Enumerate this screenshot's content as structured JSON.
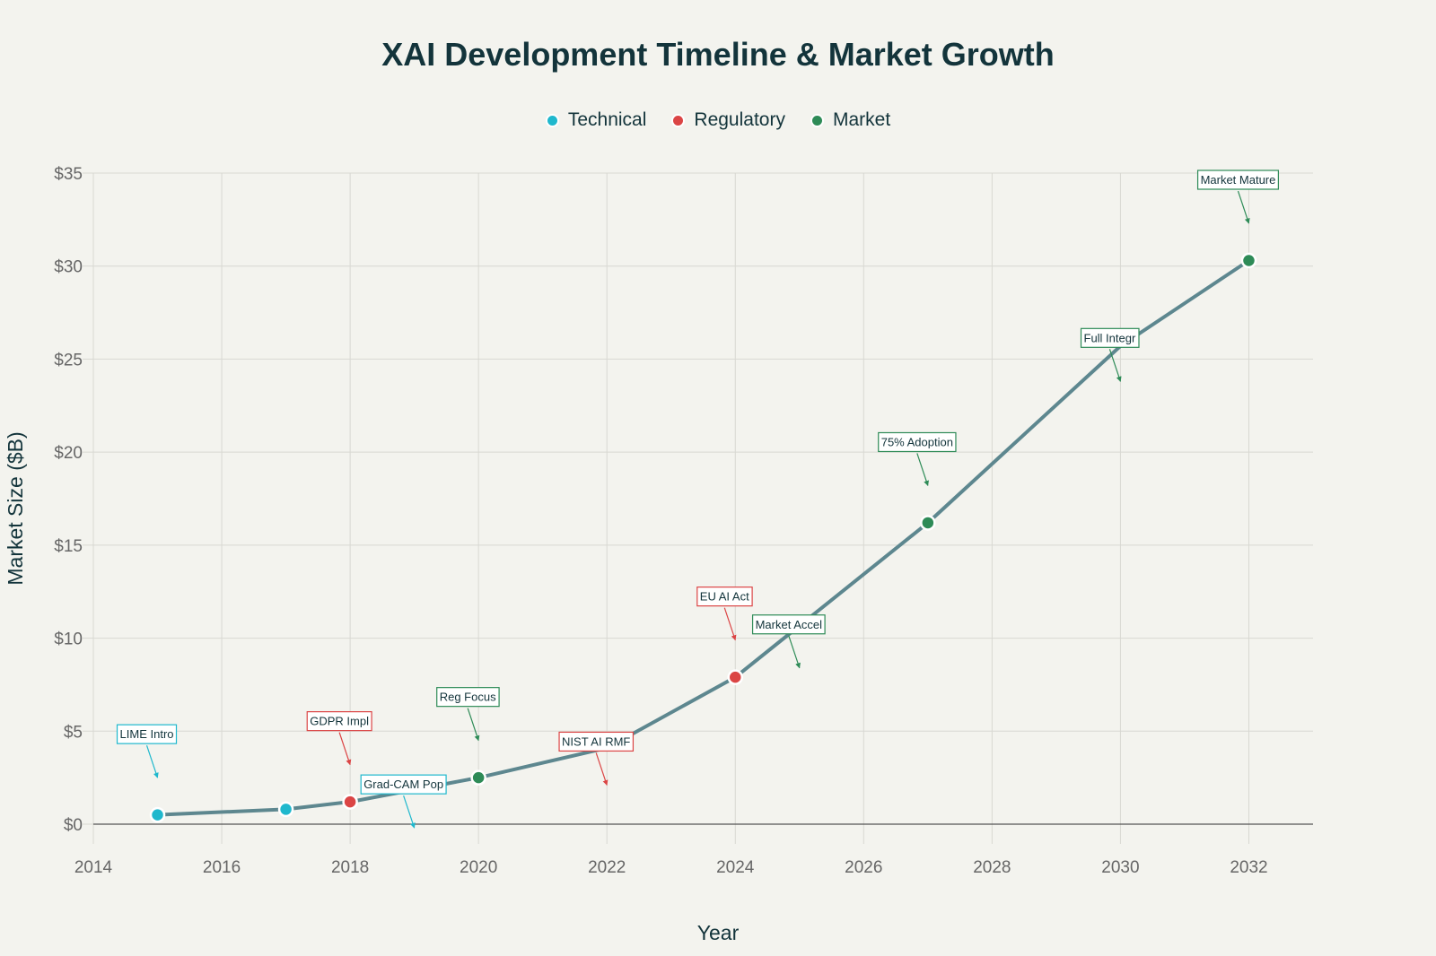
{
  "chart_data": {
    "type": "line",
    "title": "XAI Development Timeline & Market Growth",
    "xlabel": "Year",
    "ylabel": "Market Size ($B)",
    "xlim": [
      2014,
      2033
    ],
    "ylim": [
      0,
      35
    ],
    "x_ticks": [
      2014,
      2016,
      2018,
      2020,
      2022,
      2024,
      2026,
      2028,
      2030,
      2032
    ],
    "y_ticks": [
      0,
      5,
      10,
      15,
      20,
      25,
      30,
      35
    ],
    "y_tick_labels": [
      "$0",
      "$5",
      "$10",
      "$15",
      "$20",
      "$25",
      "$30",
      "$35"
    ],
    "grid": true,
    "legend_position": "top-center",
    "line": {
      "color": "#5d878f",
      "x": [
        2015,
        2017,
        2018,
        2020,
        2022,
        2024,
        2027,
        2030,
        2032
      ],
      "y": [
        0.5,
        0.8,
        1.2,
        2.5,
        4.1,
        7.9,
        16.2,
        25.7,
        30.3
      ]
    },
    "series": [
      {
        "name": "Technical",
        "color": "#1fb8cd",
        "x": [
          2015,
          2017
        ],
        "y": [
          0.5,
          0.8
        ]
      },
      {
        "name": "Regulatory",
        "color": "#db4545",
        "x": [
          2018,
          2024
        ],
        "y": [
          1.2,
          7.9
        ]
      },
      {
        "name": "Market",
        "color": "#2e8b57",
        "x": [
          2020,
          2027,
          2032
        ],
        "y": [
          2.5,
          16.2,
          30.3
        ]
      }
    ],
    "annotations": [
      {
        "text": "LIME Intro",
        "category": "Technical",
        "x": 2015,
        "y": 2.5
      },
      {
        "text": "GDPR Impl",
        "category": "Regulatory",
        "x": 2018,
        "y": 3.2
      },
      {
        "text": "Grad-CAM Pop",
        "category": "Technical",
        "x": 2019,
        "y": -0.2
      },
      {
        "text": "Reg Focus",
        "category": "Market",
        "x": 2020,
        "y": 4.5
      },
      {
        "text": "NIST AI RMF",
        "category": "Regulatory",
        "x": 2022,
        "y": 2.1
      },
      {
        "text": "EU AI Act",
        "category": "Regulatory",
        "x": 2024,
        "y": 9.9
      },
      {
        "text": "Market Accel",
        "category": "Market",
        "x": 2025,
        "y": 8.4
      },
      {
        "text": "75% Adoption",
        "category": "Market",
        "x": 2027,
        "y": 18.2
      },
      {
        "text": "Full Integr",
        "category": "Market",
        "x": 2030,
        "y": 23.8
      },
      {
        "text": "Market Mature",
        "category": "Market",
        "x": 2032,
        "y": 32.3
      }
    ]
  }
}
